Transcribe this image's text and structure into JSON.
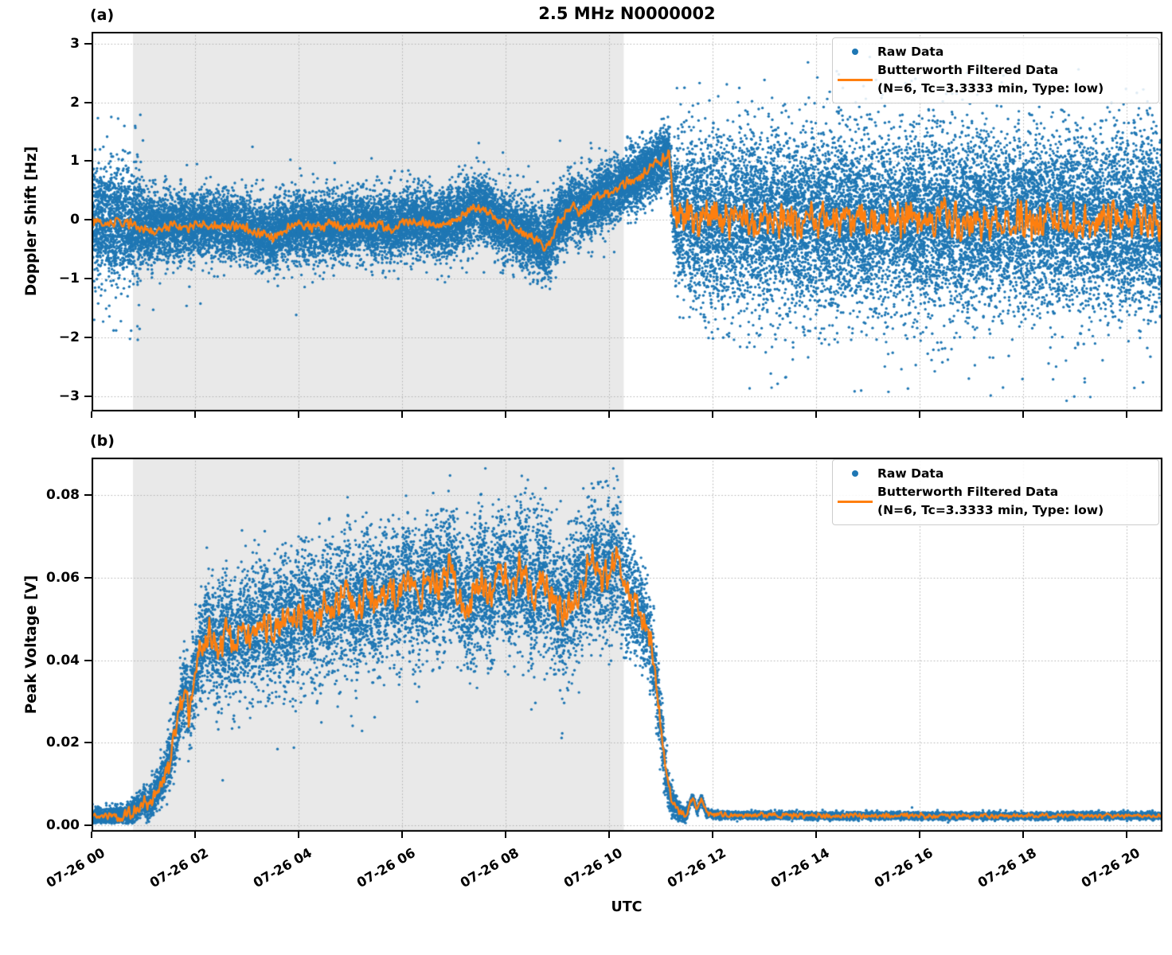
{
  "title": "2.5 MHz N0000002",
  "xlabel": "UTC",
  "legend": {
    "raw_label": "Raw Data",
    "filtered_label": "Butterworth Filtered Data",
    "filtered_sublabel": "(N=6, Tc=3.3333 min, Type: low)"
  },
  "colors": {
    "raw": "#1f77b4",
    "filtered": "#ff7f0e",
    "shade": "#e9e9e9",
    "grid": "#b0b0b0",
    "spine": "#000000"
  },
  "x_axis": {
    "hours_max": 20.6923,
    "tick_hours": [
      0,
      2,
      4,
      6,
      8,
      10,
      12,
      14,
      16,
      18,
      20
    ],
    "tick_labels": [
      "07-26 00",
      "07-26 02",
      "07-26 04",
      "07-26 06",
      "07-26 08",
      "07-26 10",
      "07-26 12",
      "07-26 14",
      "07-26 16",
      "07-26 18",
      "07-26 20"
    ]
  },
  "shaded_span_hours": [
    0.8,
    10.283
  ],
  "chart_data": [
    {
      "type": "scatter",
      "tag": "(a)",
      "ylabel": "Doppler Shift [Hz]",
      "ylim": [
        -3.26,
        3.2
      ],
      "yticks": [
        3,
        2,
        1,
        0,
        -1,
        -2,
        -3
      ],
      "ytick_labels": [
        "3",
        "2",
        "1",
        "0",
        "−1",
        "−2",
        "−3"
      ],
      "legend_entries": [
        "Raw Data",
        "Butterworth Filtered Data (N=6, Tc=3.3333 min, Type: low)"
      ],
      "series": {
        "raw": {
          "n_points": 30000,
          "sigma_keypoints": [
            [
              0,
              0.5
            ],
            [
              0.6,
              0.46
            ],
            [
              1.0,
              0.34
            ],
            [
              1.5,
              0.27
            ],
            [
              8.3,
              0.27
            ],
            [
              8.8,
              0.3
            ],
            [
              9.5,
              0.26
            ],
            [
              11.0,
              0.24
            ],
            [
              11.2,
              0.24
            ],
            [
              11.35,
              0.66
            ],
            [
              11.8,
              0.7
            ],
            [
              20.7,
              0.7
            ]
          ],
          "outlier_segments": [
            {
              "t0": 0,
              "t1": 1.0,
              "frac": 0.09,
              "sigma": 0.95,
              "bias": -0.1
            },
            {
              "t0": 1.0,
              "t1": 11.25,
              "frac": 0.025,
              "sigma": 0.5,
              "bias": -0.05
            },
            {
              "t0": 11.25,
              "t1": 20.7,
              "frac": 0.085,
              "sigma": 1.15,
              "bias": -0.2
            }
          ],
          "clip": [
            -3.1,
            3.05
          ]
        },
        "filtered": {
          "line_keypoints": [
            [
              0,
              0.02
            ],
            [
              0.3,
              -0.06
            ],
            [
              0.6,
              -0.03
            ],
            [
              0.9,
              -0.12
            ],
            [
              1.2,
              -0.16
            ],
            [
              1.5,
              -0.1
            ],
            [
              1.8,
              -0.14
            ],
            [
              2.1,
              -0.06
            ],
            [
              2.4,
              -0.1
            ],
            [
              2.7,
              -0.08
            ],
            [
              3.0,
              -0.14
            ],
            [
              3.3,
              -0.26
            ],
            [
              3.5,
              -0.3
            ],
            [
              3.7,
              -0.16
            ],
            [
              4.0,
              -0.1
            ],
            [
              4.3,
              -0.13
            ],
            [
              4.6,
              -0.08
            ],
            [
              4.9,
              -0.13
            ],
            [
              5.2,
              -0.06
            ],
            [
              5.5,
              -0.1
            ],
            [
              5.8,
              -0.14
            ],
            [
              6.1,
              -0.05
            ],
            [
              6.4,
              -0.02
            ],
            [
              6.7,
              -0.11
            ],
            [
              7.0,
              -0.02
            ],
            [
              7.3,
              0.15
            ],
            [
              7.5,
              0.22
            ],
            [
              7.7,
              0.1
            ],
            [
              7.9,
              -0.03
            ],
            [
              8.2,
              -0.14
            ],
            [
              8.5,
              -0.28
            ],
            [
              8.7,
              -0.42
            ],
            [
              8.8,
              -0.5
            ],
            [
              8.9,
              -0.28
            ],
            [
              9.0,
              -0.08
            ],
            [
              9.15,
              0.12
            ],
            [
              9.3,
              0.26
            ],
            [
              9.45,
              0.12
            ],
            [
              9.6,
              0.22
            ],
            [
              9.75,
              0.35
            ],
            [
              9.95,
              0.45
            ],
            [
              10.15,
              0.55
            ],
            [
              10.35,
              0.62
            ],
            [
              10.55,
              0.72
            ],
            [
              10.75,
              0.85
            ],
            [
              10.95,
              0.95
            ],
            [
              11.08,
              1.08
            ],
            [
              11.16,
              1.18
            ],
            [
              11.2,
              0.6
            ],
            [
              11.24,
              0.15
            ],
            [
              11.35,
              0.02
            ],
            [
              12.0,
              0.0
            ],
            [
              20.7,
              0.0
            ]
          ],
          "noise_amp_keypoints": [
            [
              0,
              0.07
            ],
            [
              8.5,
              0.07
            ],
            [
              9.0,
              0.09
            ],
            [
              10.5,
              0.09
            ],
            [
              11.16,
              0.1
            ],
            [
              11.3,
              0.27
            ],
            [
              20.7,
              0.27
            ]
          ]
        }
      }
    },
    {
      "type": "scatter",
      "tag": "(b)",
      "ylabel": "Peak Voltage [V]",
      "ylim": [
        -0.00154,
        0.0891
      ],
      "yticks": [
        0.08,
        0.06,
        0.04,
        0.02,
        0.0
      ],
      "ytick_labels": [
        "0.08",
        "0.06",
        "0.04",
        "0.02",
        "0.00"
      ],
      "legend_entries": [
        "Raw Data",
        "Butterworth Filtered Data (N=6, Tc=3.3333 min, Type: low)"
      ],
      "series": {
        "raw": {
          "n_points": 20000,
          "sigma_keypoints": [
            [
              0,
              0.001
            ],
            [
              0.9,
              0.0014
            ],
            [
              1.4,
              0.003
            ],
            [
              1.8,
              0.0045
            ],
            [
              2.2,
              0.0065
            ],
            [
              3.0,
              0.0075
            ],
            [
              5.0,
              0.008
            ],
            [
              9.5,
              0.008
            ],
            [
              10.3,
              0.0075
            ],
            [
              10.8,
              0.005
            ],
            [
              11.05,
              0.0035
            ],
            [
              11.3,
              0.0012
            ],
            [
              11.6,
              0.0006
            ],
            [
              12.2,
              0.0004
            ],
            [
              20.7,
              0.0004
            ]
          ],
          "outlier_segments": [
            {
              "t0": 1.3,
              "t1": 2.2,
              "frac": 0.04,
              "sigma": 0.006,
              "bias": 0.002
            },
            {
              "t0": 2.2,
              "t1": 10.6,
              "frac": 0.03,
              "sigma": 0.011,
              "bias": -0.004
            }
          ],
          "clip": [
            0.0004,
            0.0875
          ]
        },
        "filtered": {
          "line_keypoints": [
            [
              0,
              0.002
            ],
            [
              0.4,
              0.0022
            ],
            [
              0.7,
              0.0028
            ],
            [
              0.9,
              0.0045
            ],
            [
              1.0,
              0.006
            ],
            [
              1.1,
              0.0045
            ],
            [
              1.25,
              0.008
            ],
            [
              1.4,
              0.012
            ],
            [
              1.55,
              0.018
            ],
            [
              1.65,
              0.024
            ],
            [
              1.75,
              0.03
            ],
            [
              1.82,
              0.035
            ],
            [
              1.88,
              0.027
            ],
            [
              1.95,
              0.035
            ],
            [
              2.05,
              0.04
            ],
            [
              2.15,
              0.044
            ],
            [
              2.3,
              0.046
            ],
            [
              2.45,
              0.043
            ],
            [
              2.6,
              0.047
            ],
            [
              2.75,
              0.044
            ],
            [
              2.9,
              0.048
            ],
            [
              3.1,
              0.046
            ],
            [
              3.3,
              0.05
            ],
            [
              3.5,
              0.047
            ],
            [
              3.7,
              0.051
            ],
            [
              3.9,
              0.048
            ],
            [
              4.1,
              0.053
            ],
            [
              4.3,
              0.05
            ],
            [
              4.5,
              0.054
            ],
            [
              4.7,
              0.051
            ],
            [
              4.9,
              0.056
            ],
            [
              5.1,
              0.052
            ],
            [
              5.3,
              0.057
            ],
            [
              5.5,
              0.053
            ],
            [
              5.7,
              0.058
            ],
            [
              5.9,
              0.054
            ],
            [
              6.1,
              0.06
            ],
            [
              6.3,
              0.053
            ],
            [
              6.5,
              0.061
            ],
            [
              6.7,
              0.057
            ],
            [
              6.9,
              0.062
            ],
            [
              7.1,
              0.057
            ],
            [
              7.3,
              0.053
            ],
            [
              7.5,
              0.06
            ],
            [
              7.7,
              0.055
            ],
            [
              7.9,
              0.063
            ],
            [
              8.1,
              0.058
            ],
            [
              8.3,
              0.063
            ],
            [
              8.5,
              0.055
            ],
            [
              8.7,
              0.06
            ],
            [
              8.9,
              0.055
            ],
            [
              9.1,
              0.051
            ],
            [
              9.3,
              0.055
            ],
            [
              9.5,
              0.059
            ],
            [
              9.7,
              0.066
            ],
            [
              9.85,
              0.06
            ],
            [
              10.0,
              0.062
            ],
            [
              10.15,
              0.065
            ],
            [
              10.3,
              0.057
            ],
            [
              10.5,
              0.054
            ],
            [
              10.65,
              0.05
            ],
            [
              10.8,
              0.044
            ],
            [
              10.9,
              0.036
            ],
            [
              11.0,
              0.024
            ],
            [
              11.1,
              0.012
            ],
            [
              11.2,
              0.006
            ],
            [
              11.35,
              0.003
            ],
            [
              11.5,
              0.0028
            ],
            [
              11.62,
              0.007
            ],
            [
              11.7,
              0.0035
            ],
            [
              11.78,
              0.0065
            ],
            [
              11.88,
              0.003
            ],
            [
              12.1,
              0.0025
            ],
            [
              14.0,
              0.0023
            ],
            [
              17.0,
              0.0023
            ],
            [
              20.7,
              0.0023
            ]
          ],
          "noise_amp_keypoints": [
            [
              0,
              0.0006
            ],
            [
              1.3,
              0.002
            ],
            [
              1.9,
              0.004
            ],
            [
              2.3,
              0.0035
            ],
            [
              10.3,
              0.0035
            ],
            [
              10.9,
              0.0025
            ],
            [
              11.3,
              0.0008
            ],
            [
              11.9,
              0.0006
            ],
            [
              20.7,
              0.0004
            ]
          ]
        }
      }
    }
  ]
}
